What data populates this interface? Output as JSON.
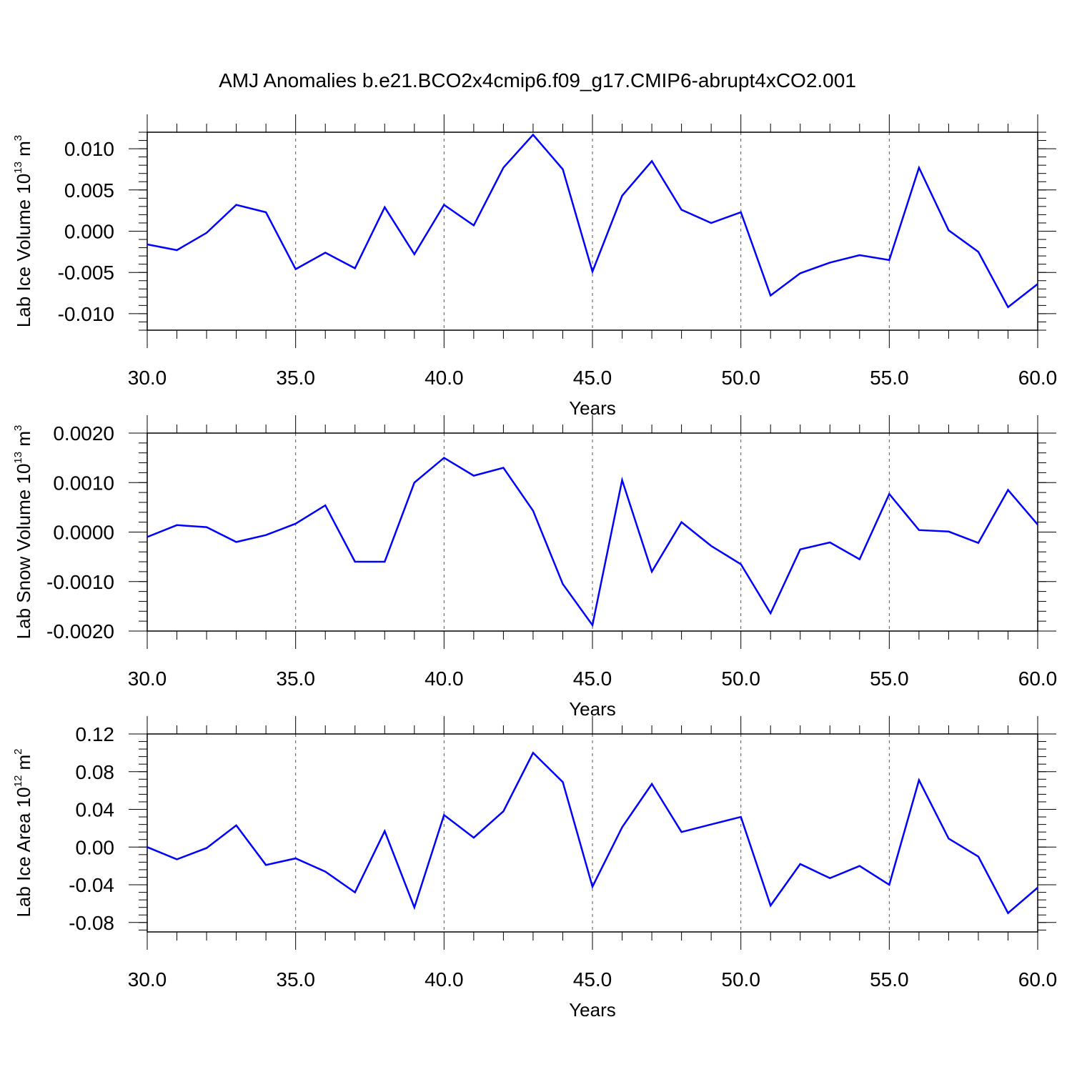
{
  "title": "AMJ Anomalies b.e21.BCO2x4cmip6.f09_g17.CMIP6-abrupt4xCO2.001",
  "line_color": "#0000ff",
  "chart_data": [
    {
      "type": "line",
      "xlabel": "Years",
      "ylabel": {
        "text": "Lab Ice Volume 10",
        "sup": "13",
        "unit": " m",
        "unit_sup": "3"
      },
      "xlim": [
        30,
        60
      ],
      "ylim": [
        -0.012,
        0.012
      ],
      "x_ticks": [
        30,
        35,
        40,
        45,
        50,
        55,
        60
      ],
      "x_tick_labels": [
        "30.0",
        "35.0",
        "40.0",
        "45.0",
        "50.0",
        "55.0",
        "60.0"
      ],
      "y_ticks": [
        -0.01,
        -0.005,
        0,
        0.005,
        0.01
      ],
      "y_tick_labels": [
        "-0.010",
        "-0.005",
        "0.000",
        "0.005",
        "0.010"
      ],
      "vertical_grid": "dashed at major x ticks",
      "series": [
        {
          "x": [
            30,
            31,
            32,
            33,
            34,
            35,
            36,
            37,
            38,
            39,
            40,
            41,
            42,
            43,
            44,
            45,
            46,
            47,
            48,
            49,
            50,
            51,
            52,
            53,
            54,
            55,
            56,
            57,
            58,
            59,
            60
          ],
          "values": [
            -0.0016,
            -0.0023,
            -0.0002,
            0.0032,
            0.0023,
            -0.0046,
            -0.0026,
            -0.0045,
            0.0029,
            -0.0028,
            0.0032,
            0.0007,
            0.0077,
            0.0117,
            0.0075,
            -0.0049,
            0.0043,
            0.0085,
            0.0026,
            0.001,
            0.0023,
            -0.0078,
            -0.0051,
            -0.0038,
            -0.0029,
            -0.0035,
            0.0077,
            0.0001,
            -0.0025,
            -0.0092,
            -0.0064
          ]
        }
      ]
    },
    {
      "type": "line",
      "xlabel": "Years",
      "ylabel": {
        "text": "Lab Snow Volume 10",
        "sup": "13",
        "unit": " m",
        "unit_sup": "3"
      },
      "xlim": [
        30,
        60
      ],
      "ylim": [
        -0.002,
        0.002
      ],
      "x_ticks": [
        30,
        35,
        40,
        45,
        50,
        55,
        60
      ],
      "x_tick_labels": [
        "30.0",
        "35.0",
        "40.0",
        "45.0",
        "50.0",
        "55.0",
        "60.0"
      ],
      "y_ticks": [
        -0.002,
        -0.001,
        0,
        0.001,
        0.002
      ],
      "y_tick_labels": [
        "-0.0020",
        "-0.0010",
        "0.0000",
        "0.0010",
        "0.0020"
      ],
      "vertical_grid": "dashed at major x ticks",
      "series": [
        {
          "x": [
            30,
            31,
            32,
            33,
            34,
            35,
            36,
            37,
            38,
            39,
            40,
            41,
            42,
            43,
            44,
            45,
            46,
            47,
            48,
            49,
            50,
            51,
            52,
            53,
            54,
            55,
            56,
            57,
            58,
            59,
            60
          ],
          "values": [
            -0.0001,
            0.00014,
            0.0001,
            -0.0002,
            -6e-05,
            0.00017,
            0.00054,
            -0.0006,
            -0.0006,
            0.001,
            0.0015,
            0.00114,
            0.0013,
            0.00043,
            -0.00105,
            -0.00188,
            0.00105,
            -0.0008,
            0.0002,
            -0.00028,
            -0.00065,
            -0.00164,
            -0.00035,
            -0.00021,
            -0.00055,
            0.00077,
            4e-05,
            1e-05,
            -0.00022,
            0.00085,
            0.00015
          ]
        }
      ]
    },
    {
      "type": "line",
      "xlabel": "Years",
      "ylabel": {
        "text": "Lab Ice Area 10",
        "sup": "12",
        "unit": " m",
        "unit_sup": "2"
      },
      "xlim": [
        30,
        60
      ],
      "ylim": [
        -0.09,
        0.12
      ],
      "x_ticks": [
        30,
        35,
        40,
        45,
        50,
        55,
        60
      ],
      "x_tick_labels": [
        "30.0",
        "35.0",
        "40.0",
        "45.0",
        "50.0",
        "55.0",
        "60.0"
      ],
      "y_ticks": [
        -0.08,
        -0.04,
        0,
        0.04,
        0.08,
        0.12
      ],
      "y_tick_labels": [
        "-0.08",
        "-0.04",
        "0.00",
        "0.04",
        "0.08",
        "0.12"
      ],
      "vertical_grid": "dashed at major x ticks",
      "series": [
        {
          "x": [
            30,
            31,
            32,
            33,
            34,
            35,
            36,
            37,
            38,
            39,
            40,
            41,
            42,
            43,
            44,
            45,
            46,
            47,
            48,
            49,
            50,
            51,
            52,
            53,
            54,
            55,
            56,
            57,
            58,
            59,
            60
          ],
          "values": [
            0.0,
            -0.013,
            -0.001,
            0.023,
            -0.019,
            -0.012,
            -0.026,
            -0.048,
            0.017,
            -0.064,
            0.034,
            0.01,
            0.038,
            0.1,
            0.069,
            -0.042,
            0.021,
            0.067,
            0.016,
            0.024,
            0.032,
            -0.062,
            -0.018,
            -0.033,
            -0.02,
            -0.04,
            0.071,
            0.009,
            -0.01,
            -0.07,
            -0.043
          ]
        }
      ]
    }
  ]
}
